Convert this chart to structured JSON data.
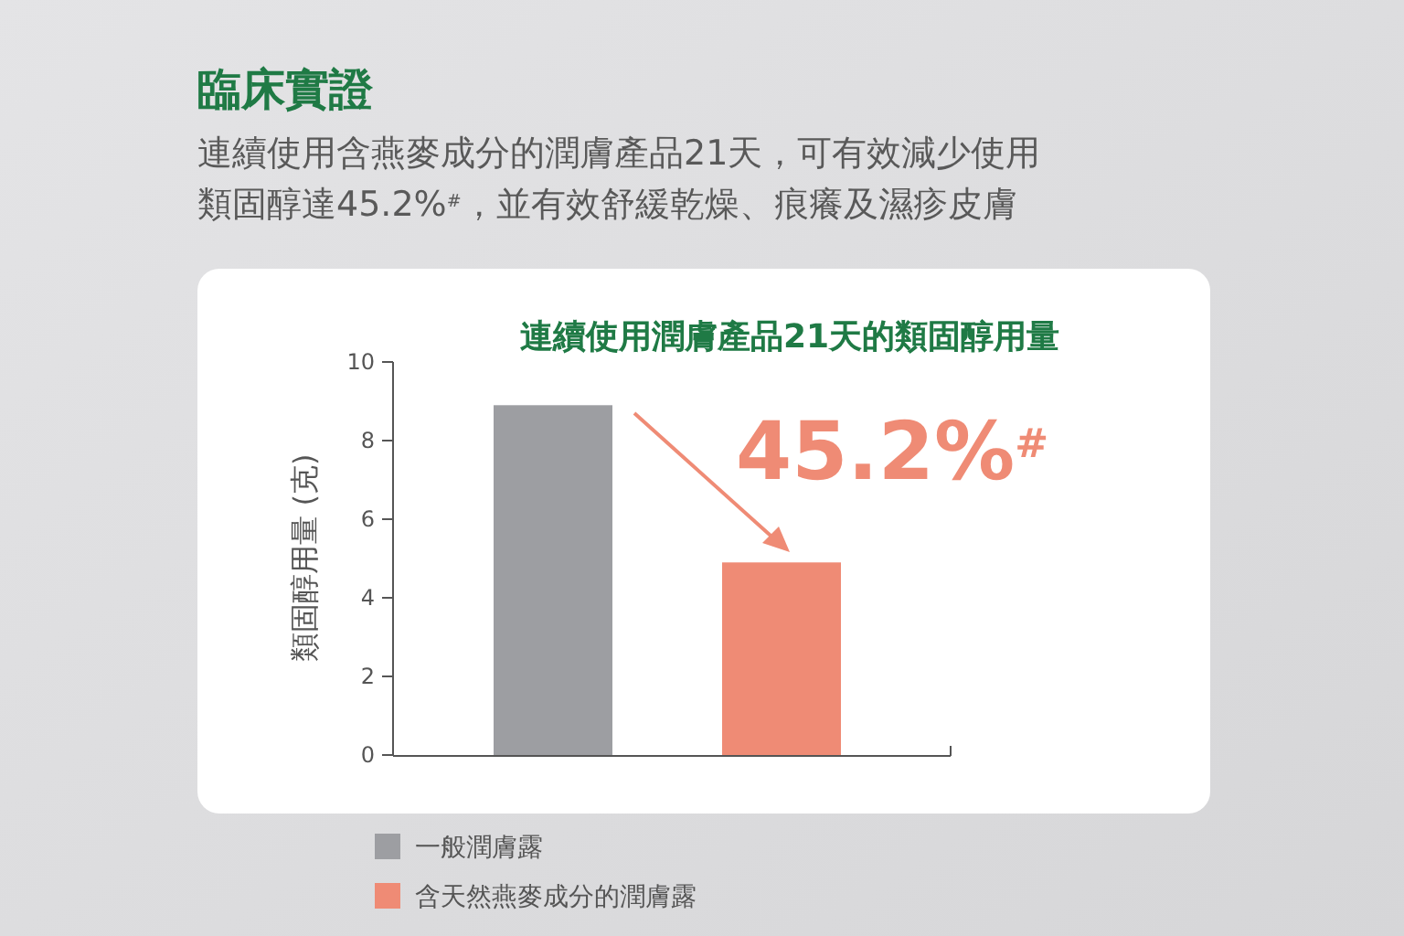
{
  "chart_data": {
    "type": "bar",
    "title": "臨床實證",
    "subtitle": "連續使用含燕麥成分的潤膚產品21天，可有效減少使用類固醇達45.2%$^{#}$，並有效舒緩乾燥、痕癢及濕疹皮膚",
    "annotations": [
      "連續使用潤膚產品21天的類固醇用量",
      "45.2%$^{#}$"
    ],
    "ylabel": "類固醇用量 (克)",
    "categories": [
      null,
      null
    ],
    "series": [
      {
        "name": "一般潤膚露",
        "color": "#9d9ea2",
        "values": [
          8.9,
          null
        ]
      },
      {
        "name": "含天然燕麥成分的潤膚露",
        "color": "#ef8b75",
        "values": [
          null,
          4.9
        ]
      }
    ],
    "ylim": [
      0,
      10
    ],
    "yticks": [
      0,
      2,
      4,
      6,
      8,
      10
    ],
    "grid": false,
    "legend": "bottom left"
  }
}
